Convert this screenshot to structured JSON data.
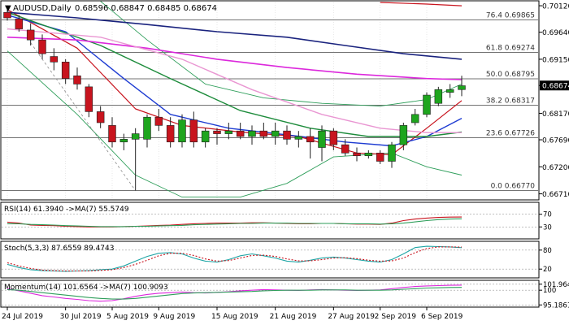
{
  "header": {
    "symbol_label": "AUDUSD,Daily",
    "ohlc_text": "0.68596 0.68847 0.68485 0.68674"
  },
  "colors": {
    "bull": "#1ea51e",
    "bear": "#c8141e",
    "wick": "#222222",
    "fib": "#444444",
    "grid": "#d8d8d8",
    "price_label_bg": "#000000",
    "price_label_text": "#ffffff"
  },
  "chart_data": [
    {
      "type": "candlestick",
      "panel": "price",
      "ylim": [
        0.6663,
        0.7018
      ],
      "y_ticks": [
        "0.70120",
        "0.69640",
        "0.69150",
        "0.68674",
        "0.68170",
        "0.67690",
        "0.67200",
        "0.66710"
      ],
      "last_price": "0.68674",
      "x_dates": [
        "24 Jul 2019",
        "30 Jul 2019",
        "5 Aug 2019",
        "9 Aug 2019",
        "15 Aug 2019",
        "21 Aug 2019",
        "27 Aug 2019",
        "2 Sep 2019",
        "6 Sep 2019"
      ],
      "candles": [
        {
          "o": 0.7,
          "h": 0.701,
          "l": 0.6985,
          "c": 0.699
        },
        {
          "o": 0.6988,
          "h": 0.6995,
          "l": 0.6965,
          "c": 0.697
        },
        {
          "o": 0.6968,
          "h": 0.698,
          "l": 0.694,
          "c": 0.695
        },
        {
          "o": 0.695,
          "h": 0.696,
          "l": 0.6915,
          "c": 0.6925
        },
        {
          "o": 0.692,
          "h": 0.6935,
          "l": 0.6895,
          "c": 0.691
        },
        {
          "o": 0.691,
          "h": 0.6915,
          "l": 0.687,
          "c": 0.688
        },
        {
          "o": 0.6885,
          "h": 0.69,
          "l": 0.686,
          "c": 0.687
        },
        {
          "o": 0.6865,
          "h": 0.687,
          "l": 0.681,
          "c": 0.682
        },
        {
          "o": 0.682,
          "h": 0.683,
          "l": 0.679,
          "c": 0.68
        },
        {
          "o": 0.6795,
          "h": 0.681,
          "l": 0.6755,
          "c": 0.6765
        },
        {
          "o": 0.6765,
          "h": 0.678,
          "l": 0.675,
          "c": 0.677
        },
        {
          "o": 0.677,
          "h": 0.679,
          "l": 0.6677,
          "c": 0.678
        },
        {
          "o": 0.677,
          "h": 0.6815,
          "l": 0.6755,
          "c": 0.681
        },
        {
          "o": 0.681,
          "h": 0.6825,
          "l": 0.6785,
          "c": 0.6795
        },
        {
          "o": 0.6795,
          "h": 0.681,
          "l": 0.6755,
          "c": 0.6765
        },
        {
          "o": 0.6765,
          "h": 0.6815,
          "l": 0.6755,
          "c": 0.6805
        },
        {
          "o": 0.6805,
          "h": 0.682,
          "l": 0.6755,
          "c": 0.6765
        },
        {
          "o": 0.6765,
          "h": 0.679,
          "l": 0.6755,
          "c": 0.6785
        },
        {
          "o": 0.6785,
          "h": 0.679,
          "l": 0.676,
          "c": 0.678
        },
        {
          "o": 0.678,
          "h": 0.68,
          "l": 0.677,
          "c": 0.6785
        },
        {
          "o": 0.6785,
          "h": 0.68,
          "l": 0.677,
          "c": 0.6775
        },
        {
          "o": 0.6775,
          "h": 0.6795,
          "l": 0.676,
          "c": 0.6785
        },
        {
          "o": 0.6785,
          "h": 0.68,
          "l": 0.677,
          "c": 0.6775
        },
        {
          "o": 0.6775,
          "h": 0.68,
          "l": 0.676,
          "c": 0.6785
        },
        {
          "o": 0.6785,
          "h": 0.6795,
          "l": 0.676,
          "c": 0.677
        },
        {
          "o": 0.677,
          "h": 0.6785,
          "l": 0.6755,
          "c": 0.6775
        },
        {
          "o": 0.6775,
          "h": 0.679,
          "l": 0.6735,
          "c": 0.6765
        },
        {
          "o": 0.6755,
          "h": 0.6795,
          "l": 0.673,
          "c": 0.6785
        },
        {
          "o": 0.6785,
          "h": 0.679,
          "l": 0.675,
          "c": 0.676
        },
        {
          "o": 0.676,
          "h": 0.677,
          "l": 0.674,
          "c": 0.6745
        },
        {
          "o": 0.6745,
          "h": 0.6755,
          "l": 0.673,
          "c": 0.674
        },
        {
          "o": 0.674,
          "h": 0.675,
          "l": 0.6735,
          "c": 0.6745
        },
        {
          "o": 0.6745,
          "h": 0.675,
          "l": 0.6725,
          "c": 0.673
        },
        {
          "o": 0.673,
          "h": 0.6765,
          "l": 0.6718,
          "c": 0.676
        },
        {
          "o": 0.676,
          "h": 0.68,
          "l": 0.675,
          "c": 0.6795
        },
        {
          "o": 0.68,
          "h": 0.6825,
          "l": 0.6795,
          "c": 0.6815
        },
        {
          "o": 0.6815,
          "h": 0.6855,
          "l": 0.681,
          "c": 0.685
        },
        {
          "o": 0.6835,
          "h": 0.6865,
          "l": 0.683,
          "c": 0.686
        },
        {
          "o": 0.6855,
          "h": 0.687,
          "l": 0.6845,
          "c": 0.686
        },
        {
          "o": 0.686,
          "h": 0.6885,
          "l": 0.6848,
          "c": 0.6867
        }
      ],
      "fib_levels": [
        {
          "label": "76.4 0.69865",
          "value": 0.69865
        },
        {
          "label": "61.8 0.69274",
          "value": 0.69274
        },
        {
          "label": "50.0 0.68795",
          "value": 0.68795
        },
        {
          "label": "38.2 0.68317",
          "value": 0.68317
        },
        {
          "label": "23.6 0.67726",
          "value": 0.67726
        },
        {
          "label": "0.0 0.66770",
          "value": 0.6677
        }
      ],
      "overlays": [
        {
          "color": "#c8141e",
          "width": 1.2,
          "points": [
            [
              0,
              0.7005
            ],
            [
              6,
              0.6935
            ],
            [
              11,
              0.6825
            ],
            [
              15,
              0.6795
            ],
            [
              20,
              0.6783
            ],
            [
              25,
              0.6775
            ],
            [
              30,
              0.6745
            ],
            [
              33,
              0.6742
            ],
            [
              36,
              0.679
            ],
            [
              39,
              0.684
            ]
          ]
        },
        {
          "color": "#1e3cd2",
          "width": 1.4,
          "points": [
            [
              0,
              0.6995
            ],
            [
              5,
              0.6965
            ],
            [
              10,
              0.688
            ],
            [
              14,
              0.6815
            ],
            [
              19,
              0.679
            ],
            [
              24,
              0.6778
            ],
            [
              29,
              0.6765
            ],
            [
              33,
              0.6758
            ],
            [
              36,
              0.6775
            ],
            [
              39,
              0.6808
            ]
          ]
        },
        {
          "color": "#1e8c3c",
          "width": 1.4,
          "points": [
            [
              0,
              0.7
            ],
            [
              8,
              0.694
            ],
            [
              14,
              0.688
            ],
            [
              20,
              0.6822
            ],
            [
              26,
              0.679
            ],
            [
              31,
              0.6775
            ],
            [
              36,
              0.6775
            ],
            [
              39,
              0.6783
            ]
          ]
        },
        {
          "color": "#1a237e",
          "width": 1.6,
          "points": [
            [
              0,
              0.7
            ],
            [
              6,
              0.699
            ],
            [
              12,
              0.6978
            ],
            [
              18,
              0.6965
            ],
            [
              24,
              0.6955
            ],
            [
              29,
              0.694
            ],
            [
              34,
              0.6925
            ],
            [
              39,
              0.6915
            ]
          ]
        },
        {
          "color": "#dc28dc",
          "width": 1.6,
          "points": [
            [
              0,
              0.6955
            ],
            [
              6,
              0.695
            ],
            [
              12,
              0.6935
            ],
            [
              18,
              0.6915
            ],
            [
              24,
              0.69
            ],
            [
              30,
              0.6888
            ],
            [
              36,
              0.688
            ],
            [
              39,
              0.6878
            ]
          ]
        },
        {
          "color": "#e996d2",
          "width": 1.4,
          "points": [
            [
              0,
              0.697
            ],
            [
              8,
              0.6955
            ],
            [
              15,
              0.6915
            ],
            [
              21,
              0.686
            ],
            [
              27,
              0.6815
            ],
            [
              32,
              0.679
            ],
            [
              36,
              0.6782
            ],
            [
              39,
              0.6782
            ]
          ]
        },
        {
          "color": "#c8141e",
          "width": 1.2,
          "points": [
            [
              32,
              0.7018
            ],
            [
              36,
              0.7015
            ],
            [
              39,
              0.7012
            ]
          ]
        }
      ],
      "bollinger": {
        "color": "#2e9e5a",
        "upper": [
          [
            8,
            0.702
          ],
          [
            12,
            0.695
          ],
          [
            17,
            0.687
          ],
          [
            22,
            0.6845
          ],
          [
            27,
            0.6835
          ],
          [
            32,
            0.683
          ],
          [
            36,
            0.6842
          ],
          [
            39,
            0.687
          ]
        ],
        "lower": [
          [
            0,
            0.693
          ],
          [
            6,
            0.6815
          ],
          [
            11,
            0.6705
          ],
          [
            15,
            0.6665
          ],
          [
            20,
            0.6665
          ],
          [
            24,
            0.669
          ],
          [
            28,
            0.6738
          ],
          [
            33,
            0.6745
          ],
          [
            36,
            0.672
          ],
          [
            39,
            0.6705
          ]
        ]
      },
      "dashed_trend": {
        "color": "#8a8a8a",
        "from": [
          2,
          0.6945
        ],
        "to": [
          11,
          0.6677
        ]
      }
    },
    {
      "type": "line",
      "panel": "rsi",
      "title": "RSI(14) 61.3940 ->MA(7) 55.5749",
      "ylim": [
        0,
        100
      ],
      "y_ticks": [
        {
          "label": "70",
          "value": 70
        },
        {
          "label": "30",
          "value": 30
        }
      ],
      "series": [
        {
          "color": "#c8141e",
          "values": [
            45,
            42,
            36,
            35,
            34,
            32,
            31,
            30,
            30,
            30,
            31,
            32,
            33,
            35,
            36,
            38,
            40,
            41,
            42,
            42,
            42,
            43,
            43,
            42,
            41,
            40,
            40,
            41,
            41,
            40,
            39,
            39,
            38,
            42,
            50,
            55,
            58,
            60,
            61,
            61.4
          ]
        },
        {
          "color": "#2e9e5a",
          "values": [
            40,
            40,
            38,
            37,
            36,
            34,
            33,
            32,
            31,
            31,
            31,
            32,
            32,
            33,
            34,
            35,
            37,
            38,
            39,
            40,
            41,
            41,
            42,
            42,
            42,
            41,
            41,
            41,
            41,
            40,
            40,
            40,
            39,
            40,
            42,
            46,
            50,
            53,
            55,
            55.6
          ]
        }
      ]
    },
    {
      "type": "line",
      "panel": "stoch",
      "title": "Stoch(5,3,3) 87.6559 89.4743",
      "ylim": [
        0,
        100
      ],
      "y_ticks": [
        {
          "label": "80",
          "value": 80
        },
        {
          "label": "20",
          "value": 20
        }
      ],
      "series": [
        {
          "color": "#1ea5a5",
          "values": [
            35,
            25,
            18,
            15,
            14,
            13,
            14,
            15,
            18,
            20,
            30,
            45,
            60,
            70,
            72,
            68,
            55,
            45,
            42,
            50,
            62,
            68,
            62,
            55,
            45,
            42,
            48,
            55,
            58,
            55,
            50,
            45,
            42,
            50,
            68,
            88,
            92,
            91,
            90,
            87.7
          ]
        },
        {
          "color": "#c8141e",
          "values": [
            40,
            30,
            22,
            17,
            15,
            14,
            14,
            14,
            16,
            18,
            25,
            35,
            48,
            62,
            70,
            70,
            63,
            52,
            45,
            47,
            55,
            63,
            64,
            60,
            52,
            46,
            46,
            50,
            55,
            56,
            53,
            48,
            45,
            46,
            55,
            72,
            85,
            90,
            90,
            89.5
          ]
        }
      ]
    },
    {
      "type": "line",
      "panel": "momentum",
      "title": "Momentum(14) 101.6564 ->MA(7) 100.9093",
      "ylim": [
        95.0,
        102.7
      ],
      "y_ticks": [
        {
          "label": "101.9645",
          "value": 101.9645
        },
        {
          "label": "100",
          "value": 100
        },
        {
          "label": "95.1861",
          "value": 95.1861
        }
      ],
      "series": [
        {
          "color": "#dc28dc",
          "values": [
            100.5,
            99.8,
            99.0,
            98.2,
            97.8,
            97.3,
            97.0,
            96.6,
            96.4,
            96.6,
            97.2,
            98.0,
            98.6,
            99.0,
            99.2,
            99.4,
            99.2,
            99.1,
            99.3,
            99.5,
            99.8,
            100.0,
            100.2,
            100.1,
            100.0,
            99.9,
            100.1,
            100.2,
            100.1,
            100.0,
            99.9,
            100.0,
            100.1,
            100.5,
            100.9,
            101.2,
            101.4,
            101.5,
            101.6,
            101.66
          ]
        },
        {
          "color": "#2e9e5a",
          "values": [
            100.2,
            100.0,
            99.6,
            99.2,
            98.8,
            98.4,
            98.0,
            97.6,
            97.3,
            97.1,
            97.1,
            97.3,
            97.7,
            98.1,
            98.5,
            98.9,
            99.1,
            99.2,
            99.3,
            99.4,
            99.5,
            99.6,
            99.8,
            99.9,
            100.0,
            100.0,
            100.0,
            100.1,
            100.1,
            100.1,
            100.0,
            100.0,
            100.0,
            100.1,
            100.3,
            100.5,
            100.7,
            100.8,
            100.9,
            100.91
          ]
        }
      ]
    }
  ]
}
